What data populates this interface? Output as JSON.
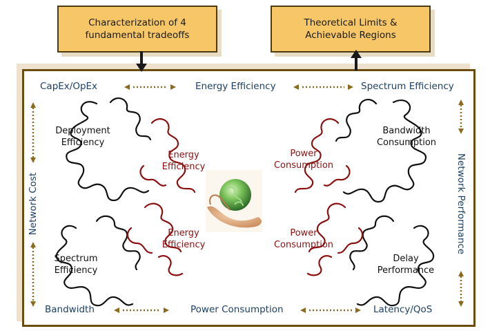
{
  "top_left_box": {
    "line1": "Characterization of 4",
    "line2": "fundamental tradeoffs"
  },
  "top_right_box": {
    "line1": "Theoretical Limits &",
    "line2": "Achievable Regions"
  },
  "labels": {
    "capex_opex": "CapEx/OpEx",
    "energy_efficiency_top": "Energy Efficiency",
    "spectrum_efficiency_top": "Spectrum Efficiency",
    "bandwidth": "Bandwidth",
    "power_consumption_bottom": "Power Consumption",
    "latency_qos": "Latency/QoS",
    "network_cost": "Network Cost",
    "network_performance": "Network Performance"
  },
  "quadrants": {
    "top_left": {
      "black_line1": "Deployment",
      "black_line2": "Efficiency",
      "red_line1": "Energy",
      "red_line2": "Efficiency"
    },
    "top_right": {
      "black_line1": "Bandwidth",
      "black_line2": "Consumption",
      "red_line1": "Power",
      "red_line2": "Consumption"
    },
    "bottom_left": {
      "black_line1": "Spectrum",
      "black_line2": "Efficiency",
      "red_line1": "Energy",
      "red_line2": "Efficiency"
    },
    "bottom_right": {
      "black_line1": "Delay",
      "black_line2": "Performance",
      "red_line1": "Power",
      "red_line2": "Consumption"
    }
  },
  "colors": {
    "box_fill": "#f6c667",
    "frame": "#6b4c0d",
    "label_blue": "#1c3f63",
    "tradeoff_red": "#8b1010",
    "arrow_brown": "#8a6a20"
  }
}
